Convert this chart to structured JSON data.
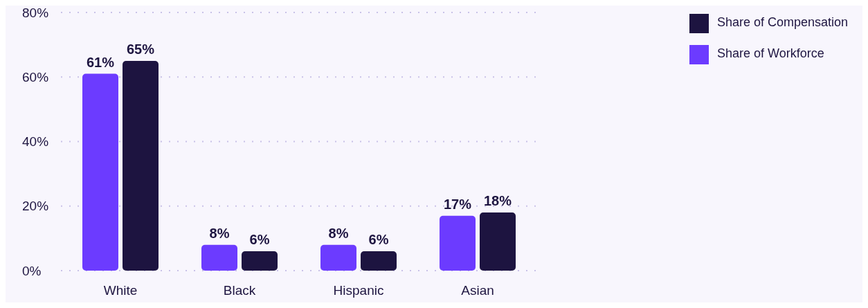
{
  "chart_data": {
    "type": "bar",
    "categories": [
      "White",
      "Black",
      "Hispanic",
      "Asian"
    ],
    "series": [
      {
        "name": "Share of Workforce",
        "color": "#6c3bff",
        "values": [
          61,
          8,
          8,
          17
        ],
        "value_labels": [
          "61%",
          "8%",
          "8%",
          "17%"
        ]
      },
      {
        "name": "Share of Compensation",
        "color": "#1d1440",
        "values": [
          65,
          6,
          6,
          18
        ],
        "value_labels": [
          "65%",
          "6%",
          "6%",
          "18%"
        ]
      }
    ],
    "ylim": [
      0,
      80
    ],
    "yticks": [
      {
        "value": 0,
        "label": "0%"
      },
      {
        "value": 20,
        "label": "20%"
      },
      {
        "value": 40,
        "label": "40%"
      },
      {
        "value": 60,
        "label": "60%"
      },
      {
        "value": 80,
        "label": "80%"
      }
    ],
    "grid": "y",
    "legend": "top right"
  }
}
